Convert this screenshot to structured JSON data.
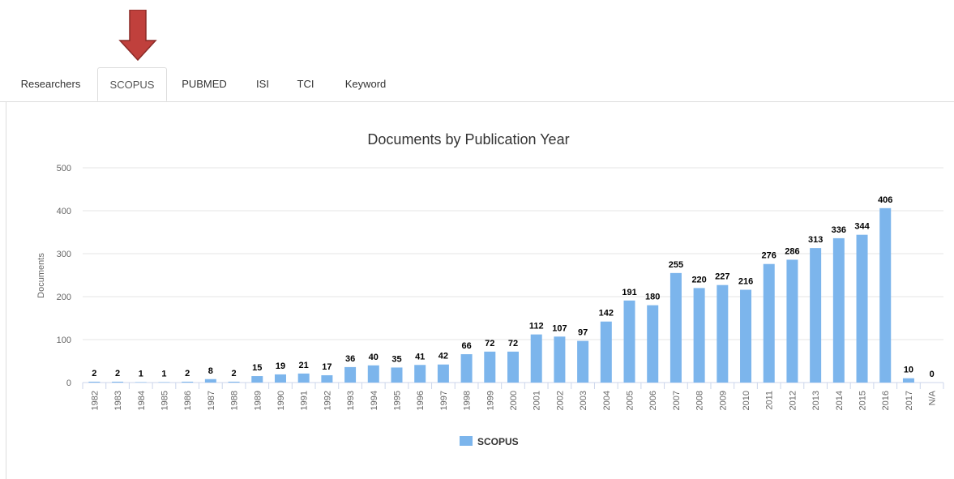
{
  "tabs": [
    {
      "label": "Researchers",
      "active": false
    },
    {
      "label": "SCOPUS",
      "active": true
    },
    {
      "label": "PUBMED",
      "active": false
    },
    {
      "label": "ISI",
      "active": false
    },
    {
      "label": "TCI",
      "active": false
    },
    {
      "label": "Keyword",
      "active": false
    }
  ],
  "colors": {
    "arrow": "#c0403c",
    "bar": "#7cb5ec",
    "grid": "#e6e6e6"
  },
  "chart_data": {
    "type": "bar",
    "title": "Documents by Publication Year",
    "xlabel": "",
    "ylabel": "Documents",
    "ylim": [
      0,
      500
    ],
    "yticks": [
      0,
      100,
      200,
      300,
      400,
      500
    ],
    "categories": [
      "1982",
      "1983",
      "1984",
      "1985",
      "1986",
      "1987",
      "1988",
      "1989",
      "1990",
      "1991",
      "1992",
      "1993",
      "1994",
      "1995",
      "1996",
      "1997",
      "1998",
      "1999",
      "2000",
      "2001",
      "2002",
      "2003",
      "2004",
      "2005",
      "2006",
      "2007",
      "2008",
      "2009",
      "2010",
      "2011",
      "2012",
      "2013",
      "2014",
      "2015",
      "2016",
      "2017",
      "N/A"
    ],
    "series": [
      {
        "name": "SCOPUS",
        "values": [
          2,
          2,
          1,
          1,
          2,
          8,
          2,
          15,
          19,
          21,
          17,
          36,
          40,
          35,
          41,
          42,
          66,
          72,
          72,
          112,
          107,
          97,
          142,
          191,
          180,
          255,
          220,
          227,
          216,
          276,
          286,
          313,
          336,
          344,
          406,
          10,
          0
        ]
      }
    ],
    "grid": true,
    "legend": "bottom-center"
  }
}
